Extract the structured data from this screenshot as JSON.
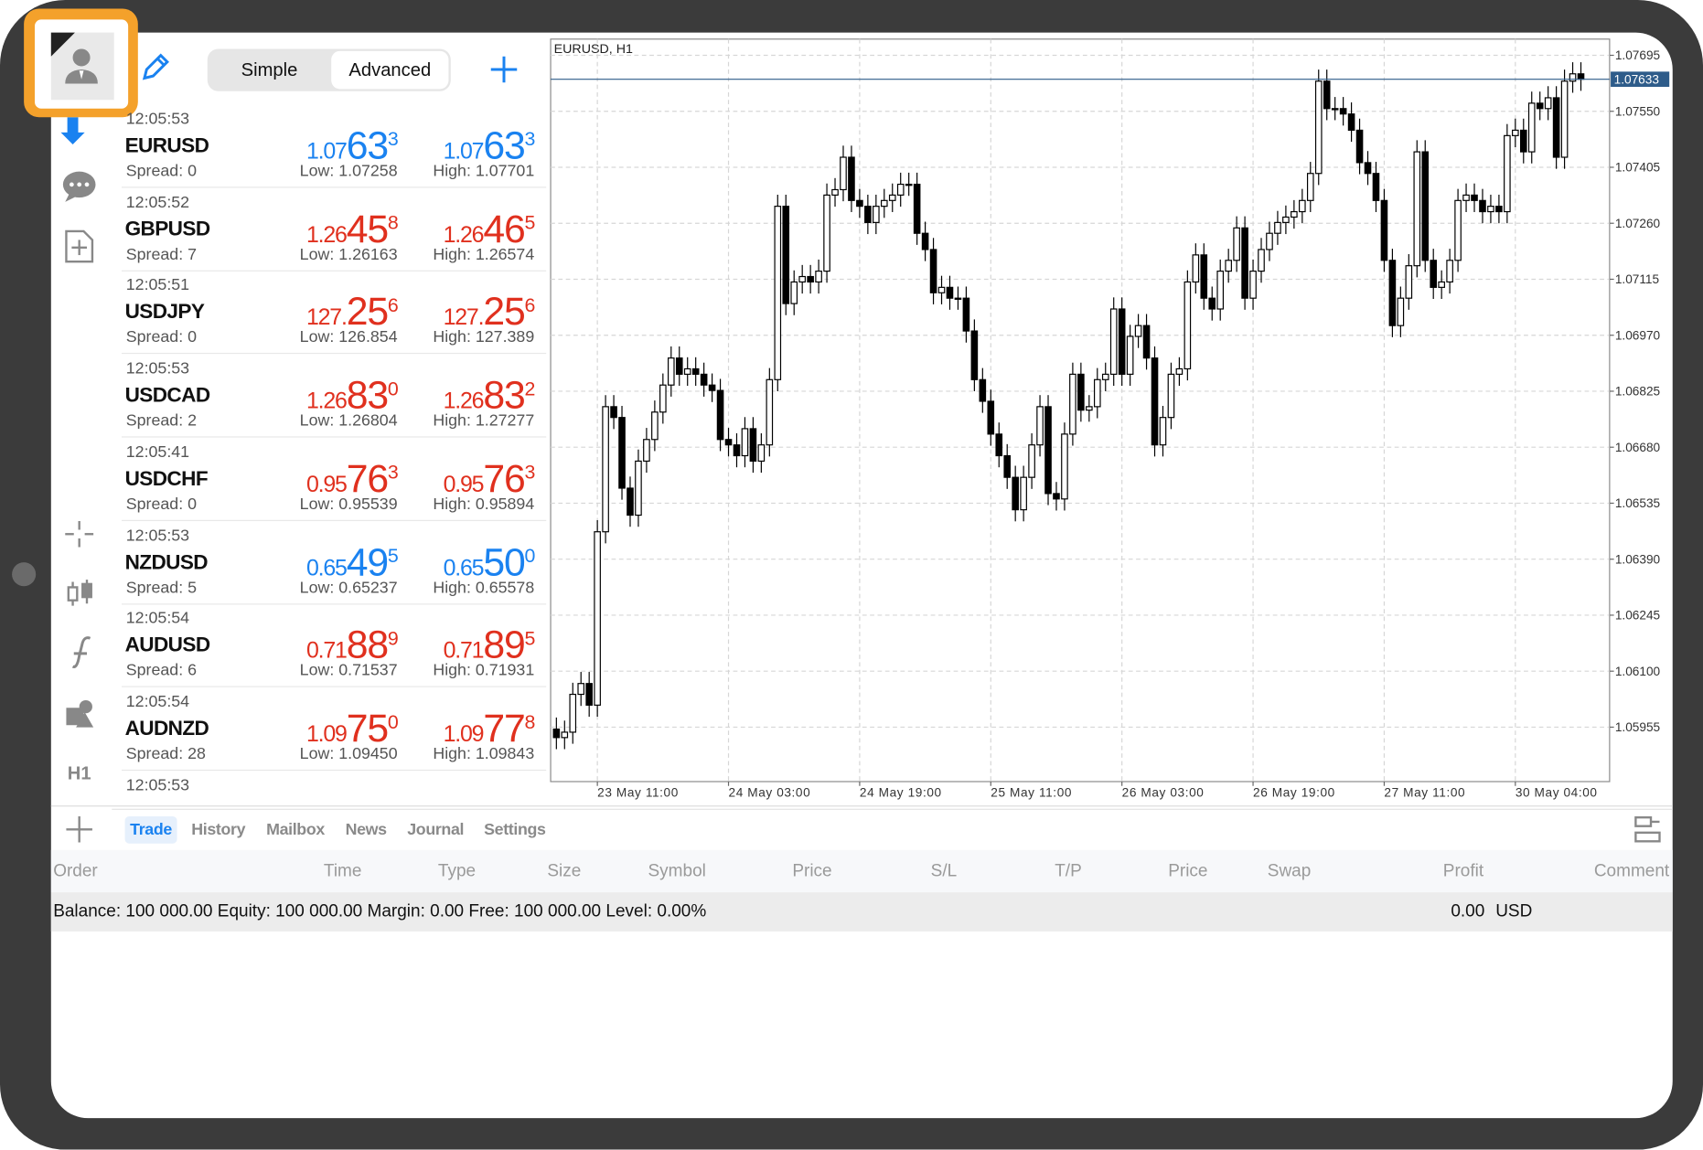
{
  "toolbar": {
    "segments": [
      "Simple",
      "Advanced"
    ]
  },
  "sidebar": {
    "timeframe": "H1"
  },
  "quotes": [
    {
      "time": "12:05:53",
      "symbol": "EURUSD",
      "spread": "Spread: 0",
      "bid": {
        "prefix": "1.07",
        "big": "63",
        "small": "3"
      },
      "ask": {
        "prefix": "1.07",
        "big": "63",
        "small": "3"
      },
      "low": "Low: 1.07258",
      "high": "High: 1.07701",
      "color": "#1a82f0"
    },
    {
      "time": "12:05:52",
      "symbol": "GBPUSD",
      "spread": "Spread: 7",
      "bid": {
        "prefix": "1.26",
        "big": "45",
        "small": "8"
      },
      "ask": {
        "prefix": "1.26",
        "big": "46",
        "small": "5"
      },
      "low": "Low: 1.26163",
      "high": "High: 1.26574",
      "color": "#e0301e"
    },
    {
      "time": "12:05:51",
      "symbol": "USDJPY",
      "spread": "Spread: 0",
      "bid": {
        "prefix": "127.",
        "big": "25",
        "small": "6"
      },
      "ask": {
        "prefix": "127.",
        "big": "25",
        "small": "6"
      },
      "low": "Low: 126.854",
      "high": "High: 127.389",
      "color": "#e0301e"
    },
    {
      "time": "12:05:53",
      "symbol": "USDCAD",
      "spread": "Spread: 2",
      "bid": {
        "prefix": "1.26",
        "big": "83",
        "small": "0"
      },
      "ask": {
        "prefix": "1.26",
        "big": "83",
        "small": "2"
      },
      "low": "Low: 1.26804",
      "high": "High: 1.27277",
      "color": "#e0301e"
    },
    {
      "time": "12:05:41",
      "symbol": "USDCHF",
      "spread": "Spread: 0",
      "bid": {
        "prefix": "0.95",
        "big": "76",
        "small": "3"
      },
      "ask": {
        "prefix": "0.95",
        "big": "76",
        "small": "3"
      },
      "low": "Low: 0.95539",
      "high": "High: 0.95894",
      "color": "#e0301e"
    },
    {
      "time": "12:05:53",
      "symbol": "NZDUSD",
      "spread": "Spread: 5",
      "bid": {
        "prefix": "0.65",
        "big": "49",
        "small": "5"
      },
      "ask": {
        "prefix": "0.65",
        "big": "50",
        "small": "0"
      },
      "low": "Low: 0.65237",
      "high": "High: 0.65578",
      "color": "#1a82f0"
    },
    {
      "time": "12:05:54",
      "symbol": "AUDUSD",
      "spread": "Spread: 6",
      "bid": {
        "prefix": "0.71",
        "big": "88",
        "small": "9"
      },
      "ask": {
        "prefix": "0.71",
        "big": "89",
        "small": "5"
      },
      "low": "Low: 0.71537",
      "high": "High: 0.71931",
      "color": "#e0301e"
    },
    {
      "time": "12:05:54",
      "symbol": "AUDNZD",
      "spread": "Spread: 28",
      "bid": {
        "prefix": "1.09",
        "big": "75",
        "small": "0"
      },
      "ask": {
        "prefix": "1.09",
        "big": "77",
        "small": "8"
      },
      "low": "Low: 1.09450",
      "high": "High: 1.09843",
      "color": "#e0301e"
    },
    {
      "time": "12:05:53"
    }
  ],
  "chart_data": {
    "type": "candlestick",
    "title": "EURUSD, H1",
    "open": [
      1.0595,
      1.05928,
      1.05942,
      1.0604,
      1.06068,
      1.06012,
      1.06461,
      1.06785,
      1.06757,
      1.06574,
      1.06504,
      1.06644,
      1.067,
      1.06771,
      1.06841,
      1.06911,
      1.06869,
      1.06883,
      1.06869,
      1.06841,
      1.06827,
      1.067,
      1.06686,
      1.06658,
      1.06728,
      1.06644,
      1.06686,
      1.06855,
      1.07304,
      1.07052,
      1.07108,
      1.07122,
      1.07108,
      1.07136,
      1.07333,
      1.07347,
      1.07431,
      1.07319,
      1.07304,
      1.07262,
      1.07304,
      1.07319,
      1.07333,
      1.07361,
      1.07361,
      1.07234,
      1.07192,
      1.0708,
      1.07094,
      1.07066,
      1.07066,
      1.06981,
      1.06855,
      1.06799,
      1.06714,
      1.06658,
      1.06602,
      1.06518,
      1.06602,
      1.06686,
      1.06785,
      1.0656,
      1.06546,
      1.06714,
      1.06869,
      1.06776,
      1.06785,
      1.06855,
      1.06869,
      1.07038,
      1.06869,
      1.06967,
      1.06995,
      1.06911,
      1.06686,
      1.06757,
      1.06869,
      1.06883,
      1.07108,
      1.07178,
      1.07066,
      1.07038,
      1.07136,
      1.07164,
      1.07248,
      1.07066,
      1.07136,
      1.07192,
      1.07234,
      1.07262,
      1.07276,
      1.0729,
      1.07319,
      1.07389,
      1.07628,
      1.07557,
      1.07557,
      1.07543,
      1.07501,
      1.07417,
      1.07389,
      1.07319,
      1.07164,
      1.06995,
      1.07066,
      1.0715,
      1.07445,
      1.07164,
      1.07094,
      1.07108,
      1.07164,
      1.07319,
      1.07333,
      1.07319,
      1.0729,
      1.07304,
      1.0729,
      1.07487,
      1.07501,
      1.07445,
      1.07571,
      1.07557,
      1.07585,
      1.07431,
      1.07628,
      1.07647
    ],
    "high": [
      1.0598,
      1.05972,
      1.0607,
      1.06098,
      1.06098,
      1.06491,
      1.06815,
      1.06815,
      1.06787,
      1.06604,
      1.06674,
      1.0673,
      1.06801,
      1.06871,
      1.06941,
      1.06941,
      1.06913,
      1.06913,
      1.06899,
      1.06871,
      1.06857,
      1.0673,
      1.06716,
      1.06758,
      1.06758,
      1.06716,
      1.06885,
      1.07334,
      1.07334,
      1.07138,
      1.07152,
      1.07152,
      1.07166,
      1.07363,
      1.07377,
      1.07461,
      1.07461,
      1.07349,
      1.07334,
      1.07334,
      1.07349,
      1.07363,
      1.07391,
      1.07391,
      1.07391,
      1.07264,
      1.07222,
      1.07124,
      1.07124,
      1.07096,
      1.07096,
      1.07011,
      1.06885,
      1.06829,
      1.06744,
      1.06688,
      1.06632,
      1.06632,
      1.06716,
      1.06815,
      1.06815,
      1.0659,
      1.06744,
      1.06899,
      1.06899,
      1.06815,
      1.06885,
      1.06899,
      1.07068,
      1.07068,
      1.06997,
      1.07025,
      1.07025,
      1.06941,
      1.06787,
      1.06899,
      1.06913,
      1.07138,
      1.07208,
      1.07208,
      1.07096,
      1.07166,
      1.07194,
      1.07278,
      1.07278,
      1.07166,
      1.07222,
      1.07264,
      1.07292,
      1.07306,
      1.0732,
      1.07349,
      1.07419,
      1.07658,
      1.07658,
      1.07587,
      1.07587,
      1.07573,
      1.07531,
      1.07447,
      1.07419,
      1.07349,
      1.07194,
      1.07096,
      1.0718,
      1.07475,
      1.07475,
      1.07194,
      1.07138,
      1.07194,
      1.07349,
      1.07363,
      1.07363,
      1.07349,
      1.07334,
      1.07334,
      1.07517,
      1.07531,
      1.07531,
      1.07601,
      1.07601,
      1.07615,
      1.07615,
      1.07658,
      1.07677,
      1.07677
    ],
    "low": [
      1.05898,
      1.05898,
      1.05912,
      1.0601,
      1.05982,
      1.05982,
      1.06431,
      1.06727,
      1.06544,
      1.06474,
      1.06474,
      1.06614,
      1.0667,
      1.06741,
      1.06811,
      1.06839,
      1.06839,
      1.06839,
      1.06811,
      1.06797,
      1.0667,
      1.06656,
      1.06628,
      1.06628,
      1.06614,
      1.06614,
      1.06656,
      1.06825,
      1.07022,
      1.07022,
      1.07078,
      1.07078,
      1.07078,
      1.07106,
      1.07303,
      1.07317,
      1.07289,
      1.07274,
      1.07232,
      1.07232,
      1.07274,
      1.07289,
      1.07303,
      1.07331,
      1.07204,
      1.07162,
      1.0705,
      1.0705,
      1.07036,
      1.07036,
      1.06951,
      1.06825,
      1.06769,
      1.06684,
      1.06628,
      1.06572,
      1.06488,
      1.06488,
      1.06572,
      1.06656,
      1.0653,
      1.06516,
      1.06516,
      1.06684,
      1.06746,
      1.06746,
      1.06755,
      1.06825,
      1.06839,
      1.06839,
      1.06839,
      1.06937,
      1.06881,
      1.06656,
      1.06656,
      1.06727,
      1.06839,
      1.06853,
      1.07078,
      1.07036,
      1.07008,
      1.07008,
      1.07106,
      1.07134,
      1.07036,
      1.07036,
      1.07106,
      1.07162,
      1.07204,
      1.07232,
      1.07246,
      1.0726,
      1.07289,
      1.07359,
      1.07527,
      1.07527,
      1.07513,
      1.07471,
      1.07387,
      1.07359,
      1.07289,
      1.07134,
      1.06965,
      1.06965,
      1.07036,
      1.0712,
      1.07134,
      1.07064,
      1.07064,
      1.07078,
      1.07134,
      1.07289,
      1.07289,
      1.0726,
      1.0726,
      1.0726,
      1.0726,
      1.07457,
      1.07415,
      1.07415,
      1.07527,
      1.07527,
      1.07401,
      1.07401,
      1.07598,
      1.07603
    ],
    "close": [
      1.05928,
      1.05942,
      1.0604,
      1.06068,
      1.06012,
      1.06461,
      1.06785,
      1.06757,
      1.06574,
      1.06504,
      1.06644,
      1.067,
      1.06771,
      1.06841,
      1.06911,
      1.06869,
      1.06883,
      1.06869,
      1.06841,
      1.06827,
      1.067,
      1.06686,
      1.06658,
      1.06728,
      1.06644,
      1.06686,
      1.06855,
      1.07304,
      1.07052,
      1.07108,
      1.07122,
      1.07108,
      1.07136,
      1.07333,
      1.07347,
      1.07431,
      1.07319,
      1.07304,
      1.07262,
      1.07304,
      1.07319,
      1.07333,
      1.07361,
      1.07361,
      1.07234,
      1.07192,
      1.0708,
      1.07094,
      1.07066,
      1.07066,
      1.06981,
      1.06855,
      1.06799,
      1.06714,
      1.06658,
      1.06602,
      1.06518,
      1.06602,
      1.06686,
      1.06785,
      1.0656,
      1.06546,
      1.06714,
      1.06869,
      1.06776,
      1.06785,
      1.06855,
      1.06869,
      1.07038,
      1.06869,
      1.06967,
      1.06995,
      1.06911,
      1.06686,
      1.06757,
      1.06869,
      1.06883,
      1.07108,
      1.07178,
      1.07066,
      1.07038,
      1.07136,
      1.07164,
      1.07248,
      1.07066,
      1.07136,
      1.07192,
      1.07234,
      1.07262,
      1.07276,
      1.0729,
      1.07319,
      1.07389,
      1.07628,
      1.07557,
      1.07557,
      1.07543,
      1.07501,
      1.07417,
      1.07389,
      1.07319,
      1.07164,
      1.06995,
      1.07066,
      1.0715,
      1.07445,
      1.07164,
      1.07094,
      1.07108,
      1.07164,
      1.07319,
      1.07333,
      1.07319,
      1.0729,
      1.07304,
      1.0729,
      1.07487,
      1.07501,
      1.07445,
      1.07571,
      1.07557,
      1.07585,
      1.07431,
      1.07628,
      1.07647,
      1.07633
    ],
    "last_price": 1.07633,
    "xlim": [
      -0.7,
      128.5
    ],
    "xticks": [
      {
        "value": 5,
        "label": "23 May 11:00"
      },
      {
        "value": 21,
        "label": "24 May 03:00"
      },
      {
        "value": 37,
        "label": "24 May 19:00"
      },
      {
        "value": 53,
        "label": "25 May 11:00"
      },
      {
        "value": 69,
        "label": "26 May 03:00"
      },
      {
        "value": 85,
        "label": "26 May 19:00"
      },
      {
        "value": 101,
        "label": "27 May 11:00"
      },
      {
        "value": 117,
        "label": "30 May 04:00"
      }
    ],
    "ylim": [
      1.05814,
      1.07737
    ],
    "yticks": [
      1.07695,
      {
        "value": 1.0755,
        "label": "1.07550"
      },
      1.07405,
      {
        "value": 1.0726,
        "label": "1.07260"
      },
      1.07115,
      {
        "value": 1.0697,
        "label": "1.06970"
      },
      1.06825,
      {
        "value": 1.0668,
        "label": "1.06680"
      },
      1.06535,
      {
        "value": 1.0639,
        "label": "1.06390"
      },
      1.06245,
      {
        "value": 1.061,
        "label": "1.06100"
      },
      1.05955
    ],
    "grid": true,
    "up_color": "#ffffff",
    "down_color": "#000000",
    "line_color": "#000000",
    "last_price_color": "#2e5c8a"
  },
  "terminal": {
    "tabs": [
      "Trade",
      "History",
      "Mailbox",
      "News",
      "Journal",
      "Settings"
    ],
    "columns": [
      "Order",
      "Time",
      "Type",
      "Size",
      "Symbol",
      "Price",
      "S/L",
      "T/P",
      "Price",
      "Swap",
      "Profit",
      "Comment"
    ],
    "balance": "Balance: 100 000.00 Equity: 100 000.00 Margin: 0.00 Free: 100 000.00 Level: 0.00%",
    "profit": "0.00",
    "currency": "USD"
  }
}
